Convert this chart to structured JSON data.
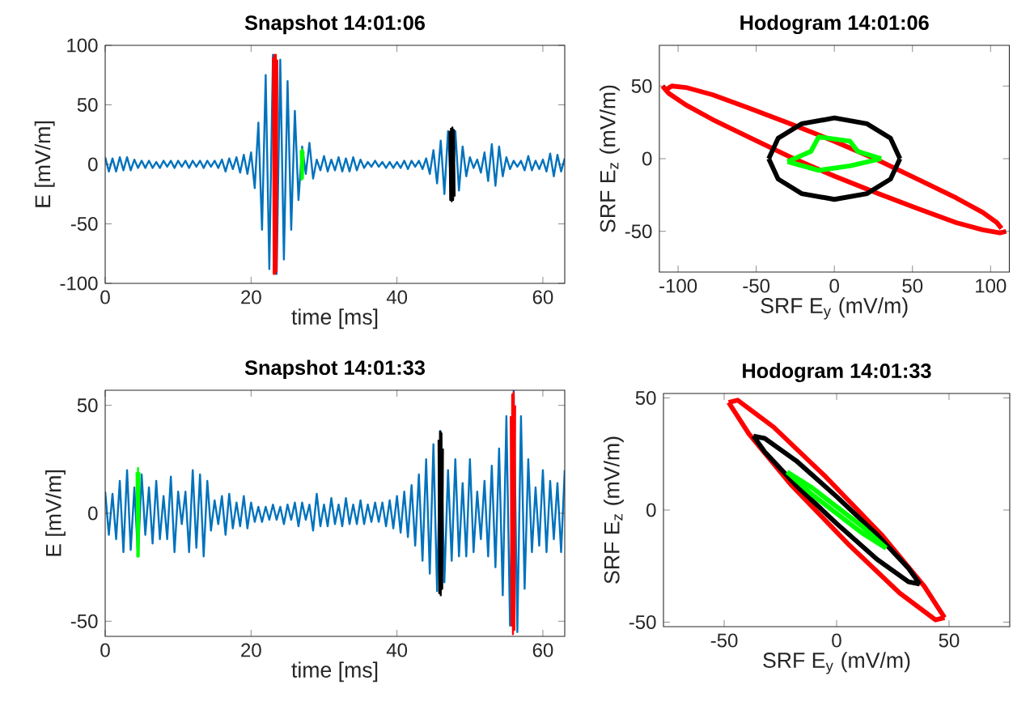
{
  "chart_data": [
    {
      "type": "line",
      "title": "Snapshot 14:01:06",
      "xlabel": "time [ms]",
      "ylabel": "E [mV/m]",
      "xlim": [
        0,
        63
      ],
      "ylim": [
        -100,
        100
      ],
      "xticks": [
        0,
        20,
        40,
        60
      ],
      "yticks": [
        -100,
        -50,
        0,
        50,
        100
      ],
      "marker": "none",
      "line_style": "solid",
      "series": [
        {
          "color": "#0072bd",
          "x": [
            0,
            0.5,
            1,
            1.5,
            2,
            2.5,
            3,
            3.5,
            4,
            4.5,
            5,
            5.5,
            6,
            6.5,
            7,
            7.5,
            8,
            8.5,
            9,
            9.5,
            10,
            10.5,
            11,
            11.5,
            12,
            12.5,
            13,
            13.5,
            14,
            14.5,
            15,
            15.5,
            16,
            16.5,
            17,
            17.5,
            18,
            18.5,
            19,
            19.5,
            20,
            20.5,
            21,
            21.5,
            22,
            22.5,
            23,
            23.5,
            24,
            24.5,
            25,
            25.5,
            26,
            26.5,
            27,
            27.5,
            28,
            28.5,
            29,
            29.5,
            30,
            30.5,
            31,
            31.5,
            32,
            32.5,
            33,
            33.5,
            34,
            34.5,
            35,
            35.5,
            36,
            36.5,
            37,
            37.5,
            38,
            38.5,
            39,
            39.5,
            40,
            40.5,
            41,
            41.5,
            42,
            42.5,
            43,
            43.5,
            44,
            44.5,
            45,
            45.5,
            46,
            46.5,
            47,
            47.5,
            48,
            48.5,
            49,
            49.5,
            50,
            50.5,
            51,
            51.5,
            52,
            52.5,
            53,
            53.5,
            54,
            54.5,
            55,
            55.5,
            56,
            56.5,
            57,
            57.5,
            58,
            58.5,
            59,
            59.5,
            60,
            60.5,
            61,
            61.5,
            62,
            62.5,
            63
          ],
          "values": [
            6,
            -6,
            5,
            -6,
            6,
            -5,
            6,
            -5,
            4,
            -3,
            3,
            -3,
            3,
            -3,
            2,
            -3,
            3,
            -2,
            3,
            -3,
            3,
            -2,
            3,
            -3,
            3,
            -2,
            3,
            -3,
            3,
            -2,
            3,
            -3,
            4,
            -6,
            5,
            -4,
            6,
            -7,
            8,
            -8,
            10,
            -20,
            35,
            -55,
            75,
            -88,
            92,
            -92,
            88,
            -80,
            70,
            -55,
            45,
            -30,
            15,
            -8,
            18,
            -12,
            4,
            -5,
            7,
            -6,
            4,
            -5,
            6,
            -6,
            5,
            -6,
            6,
            -5,
            4,
            -3,
            2,
            -2,
            3,
            -2,
            2,
            -3,
            2,
            -3,
            2,
            -3,
            3,
            -4,
            3,
            -2,
            3,
            -4,
            5,
            -8,
            12,
            -16,
            20,
            -25,
            28,
            -30,
            28,
            -22,
            15,
            -10,
            6,
            -3,
            4,
            -7,
            10,
            -14,
            17,
            -18,
            15,
            -10,
            6,
            -4,
            3,
            -2,
            3,
            -5,
            7,
            -5,
            3,
            -4,
            4,
            -6,
            9,
            -10,
            8,
            -6,
            5
          ]
        },
        {
          "color": "#ff0000",
          "x": [
            23.0,
            23.1,
            23.2,
            23.3,
            23.4,
            23.5,
            23.6
          ],
          "values": [
            90,
            -92,
            92,
            -92,
            92,
            -90,
            88
          ]
        },
        {
          "color": "#00ff00",
          "x": [
            26.8,
            26.9,
            27.0,
            27.1,
            27.2
          ],
          "values": [
            12,
            -13,
            13,
            -12,
            11
          ]
        },
        {
          "color": "#000000",
          "x": [
            47.2,
            47.3,
            47.4,
            47.5,
            47.6,
            47.7,
            47.8,
            47.9
          ],
          "values": [
            28,
            -30,
            30,
            -31,
            31,
            -30,
            29,
            -27
          ]
        }
      ]
    },
    {
      "type": "line",
      "title": "Hodogram 14:01:06",
      "xlabel": "SRF E$_{y}$ (mV/m)",
      "ylabel": "SRF E$_{z}$ (mV/m)",
      "xlim": [
        -112,
        112
      ],
      "ylim": [
        -78,
        78
      ],
      "xticks": [
        -100,
        -50,
        0,
        50,
        100
      ],
      "yticks": [
        -50,
        0,
        50
      ],
      "marker": "none",
      "line_style": "solid",
      "series": [
        {
          "color": "#ff0000",
          "x": [
            -110,
            -106,
            -95,
            -78,
            -55,
            -28,
            0,
            28,
            55,
            78,
            95,
            106,
            110
          ],
          "values": [
            50,
            45,
            37,
            27,
            15,
            1,
            -12,
            -24,
            -35,
            -44,
            -49,
            -51,
            -50
          ]
        },
        {
          "color": "#ff0000",
          "x": [
            -107,
            -104,
            -95,
            -78,
            -55,
            -28,
            0,
            28,
            55,
            78,
            95,
            104,
            107
          ],
          "values": [
            48,
            50,
            49,
            44,
            35,
            24,
            12,
            -1,
            -15,
            -27,
            -37,
            -44,
            -48
          ]
        },
        {
          "color": "#000000",
          "x": [
            -42,
            -36,
            -21,
            0,
            21,
            36,
            42
          ],
          "values": [
            0,
            -14,
            -24,
            -28,
            -24,
            -14,
            0
          ]
        },
        {
          "color": "#000000",
          "x": [
            -42,
            -36,
            -21,
            0,
            21,
            36,
            42
          ],
          "values": [
            0,
            14,
            24,
            28,
            24,
            14,
            0
          ]
        },
        {
          "color": "#00ff00",
          "x": [
            -30,
            -15,
            -10,
            10,
            15,
            30
          ],
          "values": [
            -2,
            5,
            15,
            12,
            5,
            0
          ]
        },
        {
          "color": "#00ff00",
          "x": [
            -30,
            -10,
            10,
            30
          ],
          "values": [
            -2,
            -8,
            -5,
            0
          ]
        }
      ]
    },
    {
      "type": "line",
      "title": "Snapshot 14:01:33",
      "xlabel": "time [ms]",
      "ylabel": "E [mV/m]",
      "xlim": [
        0,
        63
      ],
      "ylim": [
        -57,
        57
      ],
      "xticks": [
        0,
        20,
        40,
        60
      ],
      "yticks": [
        -50,
        0,
        50
      ],
      "marker": "none",
      "line_style": "solid",
      "series": [
        {
          "color": "#0072bd",
          "x": [
            0,
            0.5,
            1,
            1.5,
            2,
            2.5,
            3,
            3.5,
            4,
            4.5,
            5,
            5.5,
            6,
            6.5,
            7,
            7.5,
            8,
            8.5,
            9,
            9.5,
            10,
            10.5,
            11,
            11.5,
            12,
            12.5,
            13,
            13.5,
            14,
            14.5,
            15,
            15.5,
            16,
            16.5,
            17,
            17.5,
            18,
            18.5,
            19,
            19.5,
            20,
            20.5,
            21,
            21.5,
            22,
            22.5,
            23,
            23.5,
            24,
            24.5,
            25,
            25.5,
            26,
            26.5,
            27,
            27.5,
            28,
            28.5,
            29,
            29.5,
            30,
            30.5,
            31,
            31.5,
            32,
            32.5,
            33,
            33.5,
            34,
            34.5,
            35,
            35.5,
            36,
            36.5,
            37,
            37.5,
            38,
            38.5,
            39,
            39.5,
            40,
            40.5,
            41,
            41.5,
            42,
            42.5,
            43,
            43.5,
            44,
            44.5,
            45,
            45.5,
            46,
            46.5,
            47,
            47.5,
            48,
            48.5,
            49,
            49.5,
            50,
            50.5,
            51,
            51.5,
            52,
            52.5,
            53,
            53.5,
            54,
            54.5,
            55,
            55.5,
            56,
            56.5,
            57,
            57.5,
            58,
            58.5,
            59,
            59.5,
            60,
            60.5,
            61,
            61.5,
            62,
            62.5,
            63
          ],
          "values": [
            10,
            -10,
            9,
            -12,
            15,
            -18,
            20,
            -17,
            12,
            -20,
            18,
            -10,
            12,
            -14,
            15,
            -12,
            8,
            -12,
            17,
            -18,
            10,
            -5,
            10,
            -18,
            20,
            -16,
            18,
            -20,
            15,
            -8,
            6,
            -5,
            8,
            -10,
            9,
            -7,
            5,
            -6,
            8,
            -7,
            5,
            -4,
            3,
            -4,
            3,
            -3,
            4,
            -3,
            3,
            -5,
            4,
            -3,
            5,
            -6,
            5,
            -3,
            4,
            -8,
            9,
            -6,
            4,
            -6,
            7,
            -5,
            4,
            -6,
            7,
            -5,
            4,
            -5,
            6,
            -5,
            4,
            -4,
            5,
            -4,
            5,
            -6,
            6,
            -7,
            8,
            -9,
            10,
            -11,
            13,
            -15,
            18,
            -22,
            25,
            -28,
            32,
            -36,
            38,
            -32,
            20,
            -22,
            25,
            -20,
            14,
            -20,
            25,
            -18,
            10,
            -12,
            15,
            -20,
            22,
            -25,
            30,
            -38,
            45,
            -52,
            57,
            -55,
            45,
            -35,
            25,
            -18,
            12,
            -15,
            20,
            -18,
            15,
            -12,
            14,
            -18,
            20
          ]
        },
        {
          "color": "#00ff00",
          "x": [
            4.3,
            4.4,
            4.5,
            4.6,
            4.7
          ],
          "values": [
            19,
            -20,
            21,
            -20,
            19
          ]
        },
        {
          "color": "#000000",
          "x": [
            45.7,
            45.8,
            45.9,
            46.0,
            46.1,
            46.2,
            46.3
          ],
          "values": [
            34,
            -37,
            38,
            -38,
            37,
            -35,
            30
          ]
        },
        {
          "color": "#ff0000",
          "x": [
            55.6,
            55.7,
            55.8,
            55.9,
            56.0,
            56.1,
            56.2
          ],
          "values": [
            45,
            -52,
            55,
            -56,
            56,
            -54,
            50
          ]
        }
      ]
    },
    {
      "type": "line",
      "title": "Hodogram 14:01:33",
      "xlabel": "SRF E$_{y}$ (mV/m)",
      "ylabel": "SRF E$_{z}$ (mV/m)",
      "xlim": [
        -77,
        77
      ],
      "ylim": [
        -52,
        52
      ],
      "xticks": [
        -50,
        0,
        50
      ],
      "yticks": [
        -50,
        0,
        50
      ],
      "marker": "none",
      "line_style": "solid",
      "series": [
        {
          "color": "#ff0000",
          "x": [
            -48,
            -44,
            -28,
            -5,
            20,
            39,
            48
          ],
          "values": [
            48,
            49,
            37,
            15,
            -11,
            -34,
            -48
          ]
        },
        {
          "color": "#ff0000",
          "x": [
            -48,
            -39,
            -20,
            5,
            28,
            44,
            48
          ],
          "values": [
            48,
            34,
            11,
            -15,
            -37,
            -49,
            -48
          ]
        },
        {
          "color": "#000000",
          "x": [
            -37,
            -32,
            -18,
            0,
            18,
            32,
            37
          ],
          "values": [
            33,
            32,
            22,
            6,
            -11,
            -26,
            -33
          ]
        },
        {
          "color": "#000000",
          "x": [
            -37,
            -32,
            -18,
            0,
            18,
            32,
            37
          ],
          "values": [
            33,
            26,
            11,
            -6,
            -22,
            -32,
            -33
          ]
        },
        {
          "color": "#00ff00",
          "x": [
            -22,
            -11,
            11,
            22
          ],
          "values": [
            17,
            10,
            -7,
            -17
          ]
        },
        {
          "color": "#00ff00",
          "x": [
            -22,
            -11,
            11,
            22
          ],
          "values": [
            17,
            7,
            -10,
            -17
          ]
        }
      ]
    }
  ]
}
